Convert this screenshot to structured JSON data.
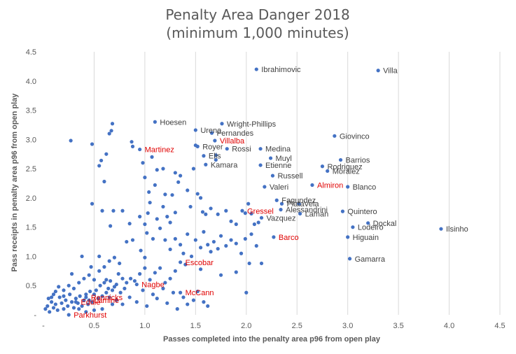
{
  "chart_data": {
    "type": "scatter",
    "title": "Penalty Area Danger 2018",
    "subtitle": "(minimum 1,000 minutes)",
    "xlabel": "Passes completed into the penalty area p96 from open play",
    "ylabel": "Pass receipts in penalty area p96 from open play",
    "xlim": [
      0,
      4.5
    ],
    "ylim": [
      0,
      4.5
    ],
    "x_ticks": [
      "-",
      "0.5",
      "1.0",
      "1.5",
      "2.0",
      "2.5",
      "3.0",
      "3.5",
      "4.0",
      "4.5"
    ],
    "y_ticks": [
      "-",
      "0.5",
      "1.0",
      "1.5",
      "2.0",
      "2.5",
      "3.0",
      "3.5",
      "4.0",
      "4.5"
    ],
    "grid": "vertical",
    "highlight_color": "#e00000",
    "point_color": "#4472c4",
    "labeled_points": [
      {
        "name": "Ibrahimovic",
        "x": 2.1,
        "y": 4.2,
        "highlight": false,
        "label_side": "right"
      },
      {
        "name": "Villa",
        "x": 3.3,
        "y": 4.18,
        "highlight": false,
        "label_side": "right"
      },
      {
        "name": "Hoesen",
        "x": 1.1,
        "y": 3.3,
        "highlight": false,
        "label_side": "right"
      },
      {
        "name": "Wright-Phillips",
        "x": 1.76,
        "y": 3.27,
        "highlight": false,
        "label_side": "right"
      },
      {
        "name": "Urena",
        "x": 1.5,
        "y": 3.16,
        "highlight": false,
        "label_side": "right"
      },
      {
        "name": "Fernandes",
        "x": 1.66,
        "y": 3.11,
        "highlight": false,
        "label_side": "right"
      },
      {
        "name": "Giovinco",
        "x": 2.87,
        "y": 3.06,
        "highlight": false,
        "label_side": "right"
      },
      {
        "name": "Villalba",
        "x": 1.69,
        "y": 2.98,
        "highlight": true,
        "label_side": "right"
      },
      {
        "name": "Royer",
        "x": 1.52,
        "y": 2.88,
        "highlight": false,
        "label_side": "right"
      },
      {
        "name": "Martinez",
        "x": 0.95,
        "y": 2.83,
        "highlight": true,
        "label_side": "right"
      },
      {
        "name": "Rossi",
        "x": 1.81,
        "y": 2.84,
        "highlight": false,
        "label_side": "right"
      },
      {
        "name": "Medina",
        "x": 2.14,
        "y": 2.84,
        "highlight": false,
        "label_side": "right"
      },
      {
        "name": "Elis",
        "x": 1.58,
        "y": 2.72,
        "highlight": false,
        "label_side": "right"
      },
      {
        "name": "Muyl",
        "x": 2.24,
        "y": 2.68,
        "highlight": false,
        "label_side": "right"
      },
      {
        "name": "Barrios",
        "x": 2.93,
        "y": 2.65,
        "highlight": false,
        "label_side": "right"
      },
      {
        "name": "Kamara",
        "x": 1.6,
        "y": 2.57,
        "highlight": false,
        "label_side": "right"
      },
      {
        "name": "Etienne",
        "x": 2.14,
        "y": 2.56,
        "highlight": false,
        "label_side": "right"
      },
      {
        "name": "Rodriguez",
        "x": 2.75,
        "y": 2.54,
        "highlight": false,
        "label_side": "right"
      },
      {
        "name": "Moralez",
        "x": 2.8,
        "y": 2.46,
        "highlight": false,
        "label_side": "right"
      },
      {
        "name": "Russell",
        "x": 2.26,
        "y": 2.38,
        "highlight": false,
        "label_side": "right"
      },
      {
        "name": "Almiron",
        "x": 2.65,
        "y": 2.22,
        "highlight": true,
        "label_side": "right"
      },
      {
        "name": "Blanco",
        "x": 3.0,
        "y": 2.19,
        "highlight": false,
        "label_side": "right"
      },
      {
        "name": "Valeri",
        "x": 2.18,
        "y": 2.19,
        "highlight": false,
        "label_side": "right"
      },
      {
        "name": "Fagundez",
        "x": 2.3,
        "y": 1.96,
        "highlight": false,
        "label_side": "right"
      },
      {
        "name": "Vela",
        "x": 2.52,
        "y": 1.9,
        "highlight": false,
        "label_side": "right"
      },
      {
        "name": "Plata",
        "x": 2.35,
        "y": 1.9,
        "highlight": false,
        "label_side": "right"
      },
      {
        "name": "Gressel",
        "x": 1.96,
        "y": 1.78,
        "highlight": true,
        "label_side": "right"
      },
      {
        "name": "Alessandrini",
        "x": 2.34,
        "y": 1.8,
        "highlight": false,
        "label_side": "right"
      },
      {
        "name": "Quintero",
        "x": 2.95,
        "y": 1.77,
        "highlight": false,
        "label_side": "right"
      },
      {
        "name": "Laman",
        "x": 2.53,
        "y": 1.73,
        "highlight": false,
        "label_side": "right"
      },
      {
        "name": "Vazquez",
        "x": 2.15,
        "y": 1.66,
        "highlight": false,
        "label_side": "right"
      },
      {
        "name": "Dockal",
        "x": 3.2,
        "y": 1.57,
        "highlight": false,
        "label_side": "right"
      },
      {
        "name": "Lodeiro",
        "x": 3.05,
        "y": 1.5,
        "highlight": false,
        "label_side": "right"
      },
      {
        "name": "Ilsinho",
        "x": 3.92,
        "y": 1.47,
        "highlight": false,
        "label_side": "right"
      },
      {
        "name": "Barco",
        "x": 2.27,
        "y": 1.33,
        "highlight": true,
        "label_side": "right"
      },
      {
        "name": "Higuain",
        "x": 3.0,
        "y": 1.33,
        "highlight": false,
        "label_side": "right"
      },
      {
        "name": "Gamarra",
        "x": 3.02,
        "y": 0.96,
        "highlight": false,
        "label_side": "right"
      },
      {
        "name": "Escobar",
        "x": 1.35,
        "y": 0.9,
        "highlight": true,
        "label_side": "right"
      },
      {
        "name": "Nagbe",
        "x": 0.92,
        "y": 0.52,
        "highlight": true,
        "label_side": "right"
      },
      {
        "name": "McCann",
        "x": 1.35,
        "y": 0.38,
        "highlight": true,
        "label_side": "right"
      },
      {
        "name": "Rennicks",
        "x": 0.42,
        "y": 0.3,
        "highlight": true,
        "label_side": "right"
      },
      {
        "name": "Lamine",
        "x": 0.45,
        "y": 0.25,
        "highlight": true,
        "label_side": "right"
      },
      {
        "name": "Eddie",
        "x": 0.32,
        "y": 0.22,
        "highlight": true,
        "label_side": "right"
      },
      {
        "name": "Parkhurst",
        "x": 0.25,
        "y": 0.0,
        "highlight": true,
        "label_side": "right"
      }
    ],
    "other_points": [
      [
        0.27,
        2.98
      ],
      [
        0.48,
        2.92
      ],
      [
        0.55,
        2.55
      ],
      [
        0.57,
        2.64
      ],
      [
        0.62,
        2.75
      ],
      [
        0.65,
        3.1
      ],
      [
        0.68,
        3.27
      ],
      [
        0.67,
        3.15
      ],
      [
        0.6,
        2.28
      ],
      [
        0.48,
        1.9
      ],
      [
        0.58,
        1.78
      ],
      [
        0.66,
        1.52
      ],
      [
        0.69,
        1.78
      ],
      [
        0.78,
        1.78
      ],
      [
        0.87,
        2.96
      ],
      [
        0.88,
        2.88
      ],
      [
        0.98,
        2.6
      ],
      [
        1.0,
        2.35
      ],
      [
        1.04,
        2.1
      ],
      [
        1.07,
        2.7
      ],
      [
        1.1,
        2.22
      ],
      [
        1.12,
        2.48
      ],
      [
        1.18,
        2.5
      ],
      [
        1.2,
        2.06
      ],
      [
        1.25,
        1.58
      ],
      [
        1.27,
        2.05
      ],
      [
        1.3,
        2.43
      ],
      [
        1.35,
        2.38
      ],
      [
        1.33,
        2.27
      ],
      [
        1.42,
        2.13
      ],
      [
        1.48,
        2.5
      ],
      [
        1.5,
        2.9
      ],
      [
        1.52,
        2.07
      ],
      [
        1.55,
        2.0
      ],
      [
        1.57,
        1.76
      ],
      [
        1.6,
        1.72
      ],
      [
        1.65,
        1.82
      ],
      [
        1.7,
        2.73
      ],
      [
        1.7,
        2.65
      ],
      [
        1.72,
        1.72
      ],
      [
        1.8,
        1.78
      ],
      [
        1.85,
        1.6
      ],
      [
        1.9,
        1.55
      ],
      [
        1.99,
        1.74
      ],
      [
        2.02,
        1.9
      ],
      [
        2.05,
        1.73
      ],
      [
        2.08,
        1.55
      ],
      [
        2.12,
        1.58
      ],
      [
        1.0,
        1.55
      ],
      [
        1.03,
        1.74
      ],
      [
        1.05,
        1.92
      ],
      [
        1.12,
        1.64
      ],
      [
        1.18,
        1.85
      ],
      [
        1.22,
        1.68
      ],
      [
        1.3,
        1.75
      ],
      [
        1.45,
        1.85
      ],
      [
        0.85,
        1.56
      ],
      [
        0.95,
        1.68
      ],
      [
        0.82,
        1.25
      ],
      [
        0.88,
        1.28
      ],
      [
        0.96,
        1.1
      ],
      [
        1.0,
        0.98
      ],
      [
        1.02,
        1.4
      ],
      [
        1.08,
        1.3
      ],
      [
        1.15,
        1.48
      ],
      [
        1.2,
        1.28
      ],
      [
        1.25,
        1.12
      ],
      [
        1.3,
        1.3
      ],
      [
        1.35,
        1.2
      ],
      [
        1.38,
        1.05
      ],
      [
        1.42,
        1.38
      ],
      [
        1.46,
        1.0
      ],
      [
        1.5,
        1.28
      ],
      [
        1.55,
        1.15
      ],
      [
        1.58,
        1.42
      ],
      [
        1.62,
        1.2
      ],
      [
        1.65,
        1.08
      ],
      [
        1.68,
        1.25
      ],
      [
        1.72,
        1.13
      ],
      [
        1.75,
        1.35
      ],
      [
        1.8,
        1.18
      ],
      [
        1.85,
        1.28
      ],
      [
        1.9,
        1.22
      ],
      [
        1.95,
        1.05
      ],
      [
        1.99,
        1.3
      ],
      [
        2.03,
        0.88
      ],
      [
        2.05,
        1.38
      ],
      [
        2.1,
        1.18
      ],
      [
        2.15,
        0.88
      ],
      [
        2.0,
        0.38
      ],
      [
        1.9,
        0.73
      ],
      [
        1.75,
        0.68
      ],
      [
        1.55,
        0.78
      ],
      [
        1.4,
        0.86
      ],
      [
        1.3,
        0.75
      ],
      [
        1.25,
        0.62
      ],
      [
        1.2,
        0.55
      ],
      [
        1.15,
        0.8
      ],
      [
        1.1,
        0.72
      ],
      [
        1.05,
        0.6
      ],
      [
        1.0,
        0.8
      ],
      [
        0.95,
        0.7
      ],
      [
        0.9,
        0.58
      ],
      [
        0.86,
        0.62
      ],
      [
        0.82,
        0.55
      ],
      [
        0.8,
        0.45
      ],
      [
        0.78,
        0.62
      ],
      [
        0.76,
        0.38
      ],
      [
        0.74,
        0.7
      ],
      [
        0.72,
        0.52
      ],
      [
        0.7,
        0.48
      ],
      [
        0.68,
        0.42
      ],
      [
        0.66,
        0.58
      ],
      [
        0.64,
        0.45
      ],
      [
        0.62,
        0.38
      ],
      [
        0.6,
        0.55
      ],
      [
        0.58,
        0.32
      ],
      [
        0.56,
        0.5
      ],
      [
        0.54,
        0.28
      ],
      [
        0.52,
        0.42
      ],
      [
        0.5,
        0.35
      ],
      [
        0.48,
        0.22
      ],
      [
        0.46,
        0.4
      ],
      [
        0.44,
        0.18
      ],
      [
        0.42,
        0.35
      ],
      [
        0.4,
        0.25
      ],
      [
        0.38,
        0.15
      ],
      [
        0.36,
        0.32
      ],
      [
        0.34,
        0.2
      ],
      [
        0.32,
        0.28
      ],
      [
        0.3,
        0.12
      ],
      [
        0.28,
        0.22
      ],
      [
        0.26,
        0.35
      ],
      [
        0.24,
        0.15
      ],
      [
        0.22,
        0.25
      ],
      [
        0.2,
        0.1
      ],
      [
        0.18,
        0.2
      ],
      [
        0.16,
        0.3
      ],
      [
        0.14,
        0.08
      ],
      [
        0.12,
        0.18
      ],
      [
        0.1,
        0.12
      ],
      [
        0.08,
        0.22
      ],
      [
        0.06,
        0.05
      ],
      [
        0.04,
        0.15
      ],
      [
        0.02,
        0.1
      ],
      [
        0.05,
        0.28
      ],
      [
        0.1,
        0.35
      ],
      [
        0.15,
        0.48
      ],
      [
        0.2,
        0.42
      ],
      [
        0.25,
        0.5
      ],
      [
        0.3,
        0.45
      ],
      [
        0.35,
        0.55
      ],
      [
        0.4,
        0.62
      ],
      [
        0.45,
        0.68
      ],
      [
        0.5,
        0.6
      ],
      [
        0.55,
        0.75
      ],
      [
        0.6,
        0.82
      ],
      [
        0.65,
        0.92
      ],
      [
        0.7,
        0.98
      ],
      [
        0.75,
        0.88
      ],
      [
        0.55,
        1.0
      ],
      [
        0.47,
        0.82
      ],
      [
        0.38,
        1.0
      ],
      [
        0.28,
        0.7
      ],
      [
        0.62,
        0.6
      ],
      [
        0.72,
        0.25
      ],
      [
        0.78,
        0.18
      ],
      [
        0.85,
        0.3
      ],
      [
        0.92,
        0.22
      ],
      [
        0.98,
        0.42
      ],
      [
        1.02,
        0.15
      ],
      [
        1.08,
        0.35
      ],
      [
        1.12,
        0.28
      ],
      [
        1.18,
        0.45
      ],
      [
        1.22,
        0.2
      ],
      [
        1.28,
        0.38
      ],
      [
        1.32,
        0.1
      ],
      [
        1.38,
        0.3
      ],
      [
        1.42,
        0.18
      ],
      [
        1.48,
        0.25
      ],
      [
        1.52,
        0.4
      ],
      [
        1.58,
        0.22
      ],
      [
        1.62,
        0.15
      ],
      [
        0.65,
        0.3
      ],
      [
        0.68,
        0.18
      ],
      [
        0.58,
        0.1
      ],
      [
        0.5,
        0.08
      ],
      [
        0.42,
        0.05
      ],
      [
        0.35,
        0.1
      ],
      [
        0.12,
        0.4
      ],
      [
        0.08,
        0.3
      ],
      [
        0.2,
        0.32
      ]
    ]
  }
}
